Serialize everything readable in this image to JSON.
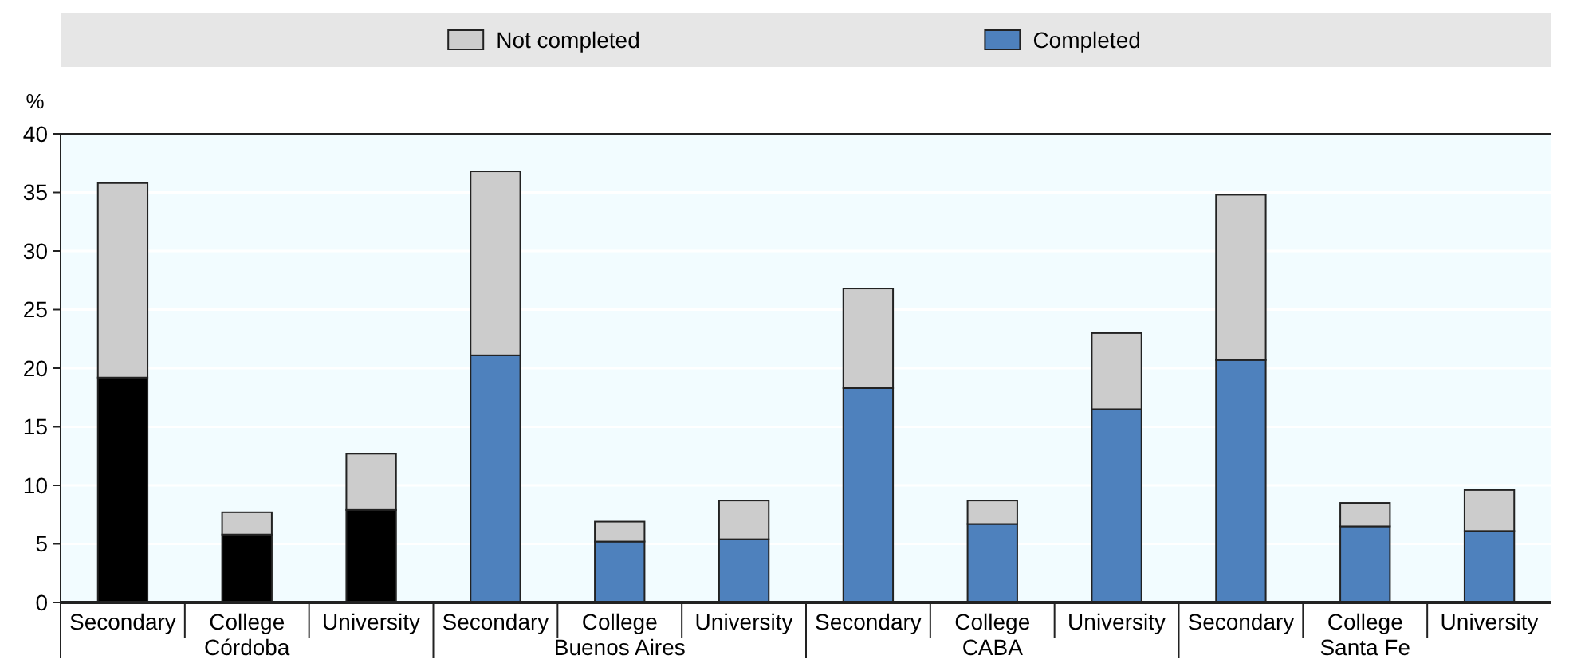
{
  "chart_data": {
    "type": "bar",
    "stacked": true,
    "ylabel": "%",
    "categories": [
      "Secondary",
      "College",
      "University",
      "Secondary",
      "College",
      "University",
      "Secondary",
      "College",
      "University",
      "Secondary",
      "College",
      "University"
    ],
    "annotations": [
      "Córdoba",
      "Buenos Aires",
      "CABA",
      "Santa Fe"
    ],
    "series": [
      {
        "name": "Completed",
        "color": "#4e81bd",
        "colors": [
          "#000000",
          "#000000",
          "#000000",
          "#4e81bd",
          "#4e81bd",
          "#4e81bd",
          "#4e81bd",
          "#4e81bd",
          "#4e81bd",
          "#4e81bd",
          "#4e81bd",
          "#4e81bd"
        ],
        "values": [
          19.2,
          5.8,
          7.9,
          21.1,
          5.2,
          5.4,
          18.3,
          6.7,
          16.5,
          20.7,
          6.5,
          6.1
        ]
      },
      {
        "name": "Not completed",
        "color": "#cccccc",
        "values": [
          16.6,
          1.9,
          4.8,
          15.7,
          1.7,
          3.3,
          8.5,
          2.0,
          6.5,
          14.1,
          2.0,
          3.5
        ]
      }
    ],
    "ylim": [
      0,
      40
    ],
    "yticks": [
      0,
      5,
      10,
      15,
      20,
      25,
      30,
      35,
      40
    ],
    "grid": "y",
    "legend": "top"
  }
}
